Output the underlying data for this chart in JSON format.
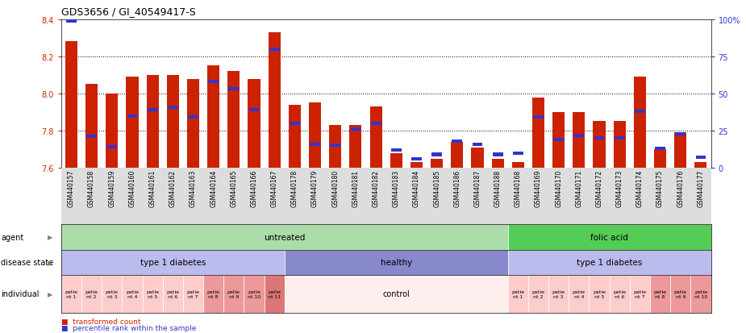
{
  "title": "GDS3656 / GI_40549417-S",
  "samples": [
    "GSM440157",
    "GSM440158",
    "GSM440159",
    "GSM440160",
    "GSM440161",
    "GSM440162",
    "GSM440163",
    "GSM440164",
    "GSM440165",
    "GSM440166",
    "GSM440167",
    "GSM440178",
    "GSM440179",
    "GSM440180",
    "GSM440181",
    "GSM440182",
    "GSM440183",
    "GSM440184",
    "GSM440185",
    "GSM440186",
    "GSM440187",
    "GSM440188",
    "GSM440168",
    "GSM440169",
    "GSM440170",
    "GSM440171",
    "GSM440172",
    "GSM440173",
    "GSM440174",
    "GSM440175",
    "GSM440176",
    "GSM440177"
  ],
  "transformed_count": [
    8.28,
    8.05,
    8.0,
    8.09,
    8.1,
    8.1,
    8.08,
    8.15,
    8.12,
    8.08,
    8.33,
    7.94,
    7.95,
    7.83,
    7.83,
    7.93,
    7.68,
    7.63,
    7.65,
    7.74,
    7.71,
    7.65,
    7.63,
    7.98,
    7.9,
    7.9,
    7.85,
    7.85,
    8.09,
    7.7,
    7.79,
    7.63
  ],
  "percentile_rank": [
    99,
    21,
    14,
    35,
    39,
    41,
    34,
    58,
    53,
    39,
    80,
    30,
    16,
    15,
    26,
    30,
    12,
    6,
    9,
    18,
    16,
    9,
    10,
    34,
    19,
    22,
    20,
    20,
    38,
    13,
    23,
    7
  ],
  "ymin": 7.6,
  "ymax": 8.4,
  "yticks": [
    7.6,
    7.8,
    8.0,
    8.2,
    8.4
  ],
  "right_yticks": [
    0,
    25,
    50,
    75,
    100
  ],
  "bar_color": "#cc2200",
  "blue_color": "#3333cc",
  "agent_groups": [
    {
      "label": "untreated",
      "start": 0,
      "end": 22,
      "color": "#aaddaa"
    },
    {
      "label": "folic acid",
      "start": 22,
      "end": 32,
      "color": "#55cc55"
    }
  ],
  "disease_groups": [
    {
      "label": "type 1 diabetes",
      "start": 0,
      "end": 11,
      "color": "#bbbbee"
    },
    {
      "label": "healthy",
      "start": 11,
      "end": 22,
      "color": "#8888cc"
    },
    {
      "label": "type 1 diabetes",
      "start": 22,
      "end": 32,
      "color": "#bbbbee"
    }
  ],
  "individual_groups_left": [
    {
      "label": "patie\nnt 1",
      "start": 0,
      "end": 1,
      "color": "#ffcccc"
    },
    {
      "label": "patie\nnt 2",
      "start": 1,
      "end": 2,
      "color": "#ffcccc"
    },
    {
      "label": "patie\nnt 3",
      "start": 2,
      "end": 3,
      "color": "#ffcccc"
    },
    {
      "label": "patie\nnt 4",
      "start": 3,
      "end": 4,
      "color": "#ffcccc"
    },
    {
      "label": "patie\nnt 5",
      "start": 4,
      "end": 5,
      "color": "#ffcccc"
    },
    {
      "label": "patie\nnt 6",
      "start": 5,
      "end": 6,
      "color": "#ffcccc"
    },
    {
      "label": "patie\nnt 7",
      "start": 6,
      "end": 7,
      "color": "#ffcccc"
    },
    {
      "label": "patie\nnt 8",
      "start": 7,
      "end": 8,
      "color": "#ee9999"
    },
    {
      "label": "patie\nnt 9",
      "start": 8,
      "end": 9,
      "color": "#ee9999"
    },
    {
      "label": "patie\nnt 10",
      "start": 9,
      "end": 10,
      "color": "#ee9999"
    },
    {
      "label": "patie\nnt 11",
      "start": 10,
      "end": 11,
      "color": "#dd7777"
    }
  ],
  "individual_control": {
    "label": "control",
    "start": 11,
    "end": 22,
    "color": "#ffeeee"
  },
  "individual_groups_right": [
    {
      "label": "patie\nnt 1",
      "start": 22,
      "end": 23,
      "color": "#ffcccc"
    },
    {
      "label": "patie\nnt 2",
      "start": 23,
      "end": 24,
      "color": "#ffcccc"
    },
    {
      "label": "patie\nnt 3",
      "start": 24,
      "end": 25,
      "color": "#ffcccc"
    },
    {
      "label": "patie\nnt 4",
      "start": 25,
      "end": 26,
      "color": "#ffcccc"
    },
    {
      "label": "patie\nnt 5",
      "start": 26,
      "end": 27,
      "color": "#ffcccc"
    },
    {
      "label": "patie\nnt 6",
      "start": 27,
      "end": 28,
      "color": "#ffcccc"
    },
    {
      "label": "patie\nnt 7",
      "start": 28,
      "end": 29,
      "color": "#ffcccc"
    },
    {
      "label": "patie\nnt 8",
      "start": 29,
      "end": 30,
      "color": "#ee9999"
    },
    {
      "label": "patie\nnt 9",
      "start": 30,
      "end": 31,
      "color": "#ee9999"
    },
    {
      "label": "patie\nnt 10",
      "start": 31,
      "end": 32,
      "color": "#ee9999"
    }
  ],
  "label_agent": "agent",
  "label_disease": "disease state",
  "label_individual": "individual",
  "legend_red": "transformed count",
  "legend_blue": "percentile rank within the sample",
  "bg_color": "#ffffff",
  "dotted_lines": [
    7.8,
    8.0,
    8.2
  ]
}
